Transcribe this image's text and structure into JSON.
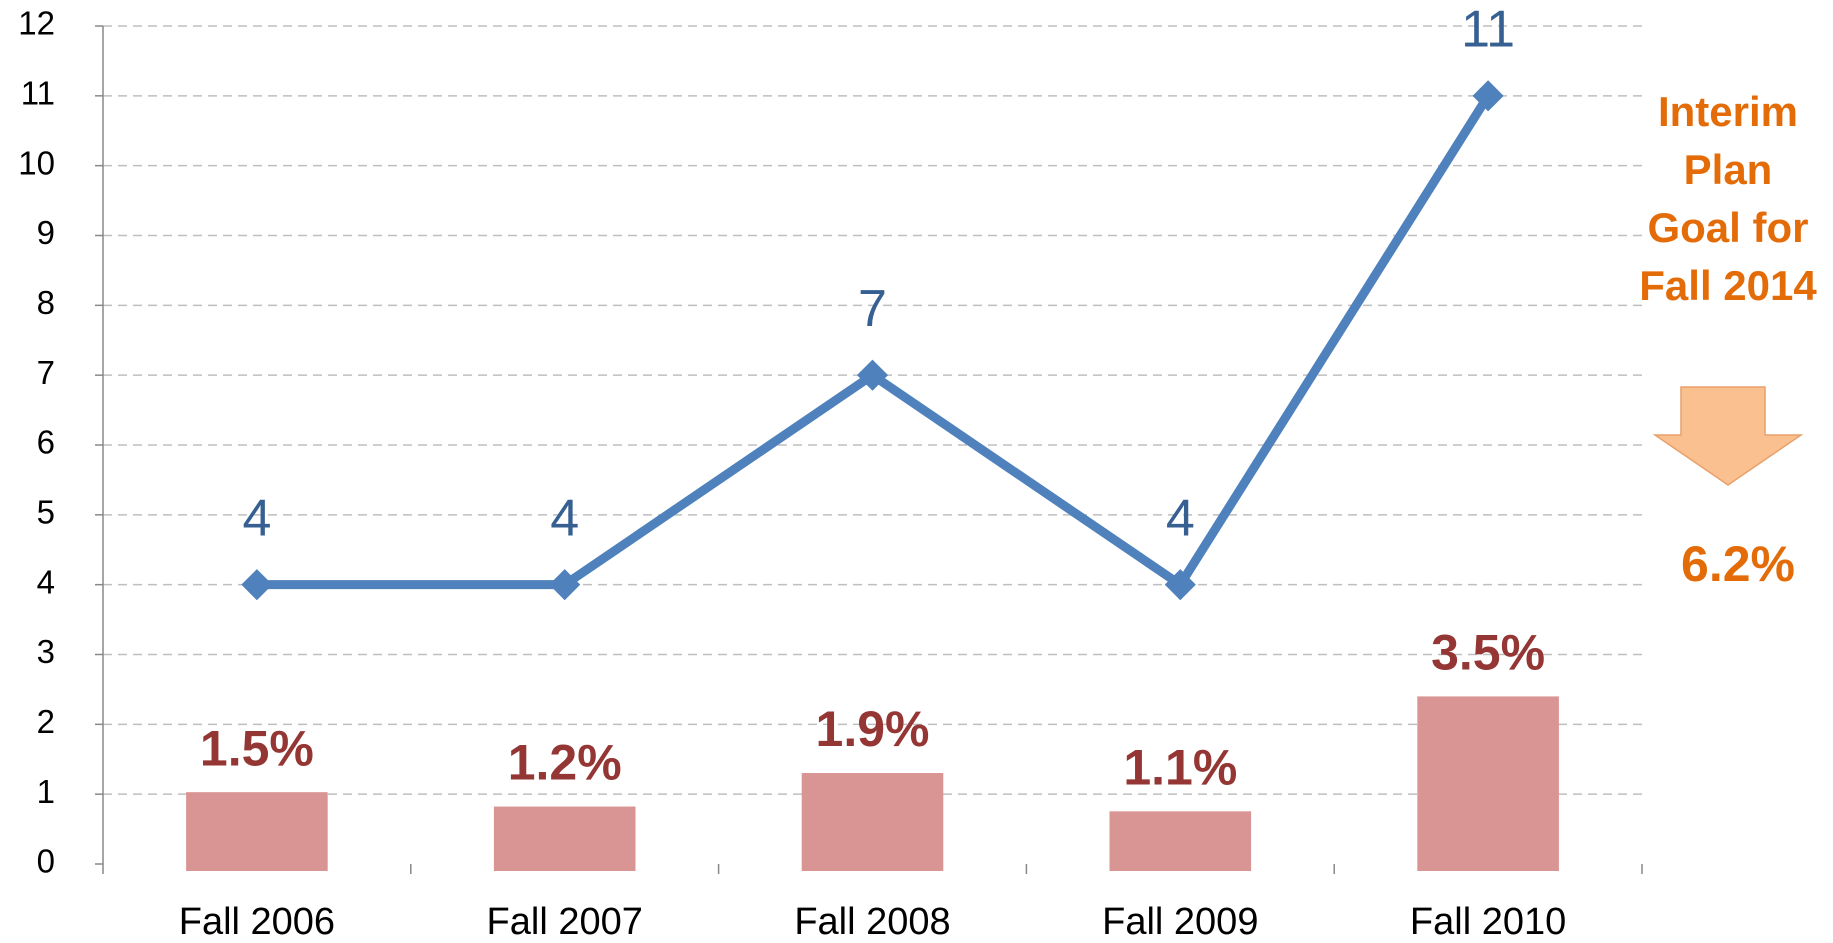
{
  "chart_data": {
    "type": "bar_line",
    "categories": [
      "Fall 2006",
      "Fall 2007",
      "Fall 2008",
      "Fall 2009",
      "Fall 2010"
    ],
    "series": [
      {
        "type": "bar",
        "axis": "y2",
        "color": "#d99594",
        "label_color": "#943634",
        "values": [
          1.5,
          1.2,
          1.9,
          1.1,
          3.5
        ],
        "value_labels": [
          "1.5%",
          "1.2%",
          "1.9%",
          "1.1%",
          "3.5%"
        ]
      },
      {
        "type": "line",
        "color": "#4f81bd",
        "label_color": "#376092",
        "values": [
          4,
          4,
          7,
          4,
          11
        ]
      }
    ],
    "ylim": [
      0,
      12
    ],
    "yticks": [
      0,
      1,
      2,
      3,
      4,
      5,
      6,
      7,
      8,
      9,
      10,
      11,
      12
    ],
    "y2lim": [
      0,
      17.5
    ],
    "grid": true,
    "annotation": {
      "lines": [
        "Interim",
        "Plan",
        "Goal for",
        "Fall 2014"
      ],
      "goal": "6.2%",
      "color": "#e36c09"
    }
  }
}
